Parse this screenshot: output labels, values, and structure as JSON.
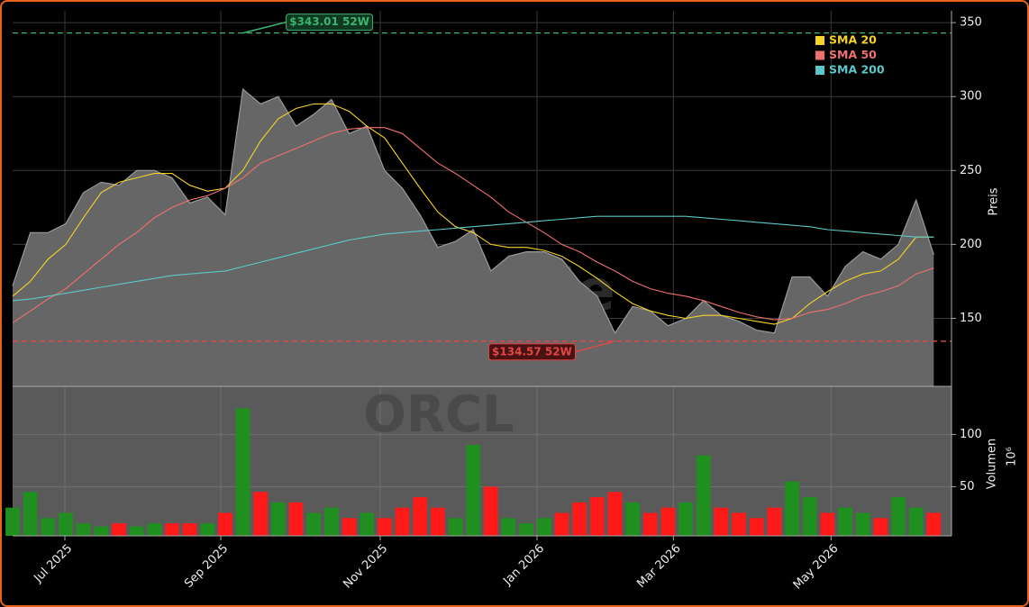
{
  "chart_data": {
    "type": "area",
    "x": [
      0,
      1,
      2,
      3,
      4,
      5,
      6,
      7,
      8,
      9,
      10,
      11,
      12,
      13,
      14,
      15,
      16,
      17,
      18,
      19,
      20,
      21,
      22,
      23,
      24,
      25,
      26,
      27,
      28,
      29,
      30,
      31,
      32,
      33,
      34,
      35,
      36,
      37,
      38,
      39,
      40,
      41,
      42,
      43,
      44,
      45,
      46,
      47,
      48,
      49,
      50,
      51,
      52
    ],
    "xlim": [
      0,
      53
    ],
    "xticks": [
      {
        "value": 2.95,
        "label": "Jul 2025"
      },
      {
        "value": 11.75,
        "label": "Sep 2025"
      },
      {
        "value": 20.75,
        "label": "Nov 2025"
      },
      {
        "value": 29.6,
        "label": "Jan 2026"
      },
      {
        "value": 37.3,
        "label": "Mar 2026"
      },
      {
        "value": 46.2,
        "label": "May 2026"
      }
    ],
    "ylim": [
      104,
      358
    ],
    "yticks": [
      150,
      200,
      250,
      300,
      350
    ],
    "ylabel": "Preis",
    "grid": true,
    "legend": "upper right",
    "price": {
      "color": "#666666",
      "line_color": "#9a9a9a",
      "values": [
        172,
        208,
        208,
        214,
        235,
        242,
        240,
        250,
        250,
        245,
        228,
        232,
        220,
        305,
        295,
        300,
        280,
        288,
        298,
        275,
        280,
        250,
        238,
        220,
        198,
        202,
        210,
        182,
        192,
        195,
        195,
        190,
        175,
        165,
        140,
        158,
        155,
        145,
        150,
        162,
        152,
        148,
        142,
        140,
        178,
        178,
        165,
        185,
        195,
        190,
        200,
        230,
        193
      ]
    },
    "series": [
      {
        "name": "SMA 20",
        "color": "#f5d327",
        "values": [
          165,
          175,
          190,
          200,
          218,
          235,
          242,
          245,
          248,
          248,
          240,
          236,
          238,
          250,
          270,
          285,
          292,
          295,
          295,
          290,
          280,
          272,
          255,
          238,
          222,
          212,
          208,
          200,
          198,
          198,
          196,
          192,
          185,
          177,
          168,
          160,
          155,
          152,
          150,
          152,
          152,
          150,
          148,
          146,
          150,
          160,
          168,
          175,
          180,
          182,
          190,
          205,
          205
        ]
      },
      {
        "name": "SMA 50",
        "color": "#f07070",
        "values": [
          147,
          155,
          163,
          170,
          180,
          190,
          200,
          208,
          218,
          225,
          230,
          233,
          238,
          245,
          255,
          260,
          265,
          270,
          275,
          278,
          279,
          279,
          275,
          265,
          255,
          248,
          240,
          232,
          222,
          215,
          208,
          200,
          195,
          188,
          182,
          175,
          170,
          167,
          165,
          162,
          158,
          154,
          151,
          149,
          150,
          154,
          156,
          160,
          165,
          168,
          172,
          180,
          184
        ]
      },
      {
        "name": "SMA 200",
        "color": "#5cc8c8",
        "values": [
          162,
          163,
          165,
          167,
          169,
          171,
          173,
          175,
          177,
          179,
          180,
          181,
          182,
          185,
          188,
          191,
          194,
          197,
          200,
          203,
          205,
          207,
          208,
          209,
          210,
          211,
          212,
          213,
          214,
          215,
          216,
          217,
          218,
          219,
          219,
          219,
          219,
          219,
          219,
          218,
          217,
          216,
          215,
          214,
          213,
          212,
          210,
          209,
          208,
          207,
          206,
          205,
          205
        ]
      }
    ],
    "annotations": [
      {
        "value": 343.01,
        "label": "$343.01 52W",
        "color": "#3cb371"
      },
      {
        "value": 134.57,
        "label": "$134.57 52W",
        "color": "#e04848"
      }
    ],
    "watermark": [
      "forexsignale.de",
      "ORCL"
    ],
    "volume": {
      "ylabel": "Volumen",
      "unit": "10⁶",
      "ylim": [
        3,
        146
      ],
      "yticks": [
        50,
        100
      ],
      "up_color": "#1f8f1f",
      "down_color": "#ff1a1a",
      "values": [
        30,
        45,
        20,
        25,
        15,
        12,
        15,
        12,
        15,
        15,
        15,
        15,
        25,
        125,
        45,
        35,
        35,
        25,
        30,
        20,
        25,
        20,
        30,
        40,
        30,
        20,
        90,
        50,
        20,
        15,
        20,
        25,
        35,
        40,
        45,
        35,
        25,
        30,
        35,
        80,
        30,
        25,
        20,
        30,
        55,
        40,
        25,
        30,
        25,
        20,
        40,
        30,
        25
      ]
    }
  }
}
